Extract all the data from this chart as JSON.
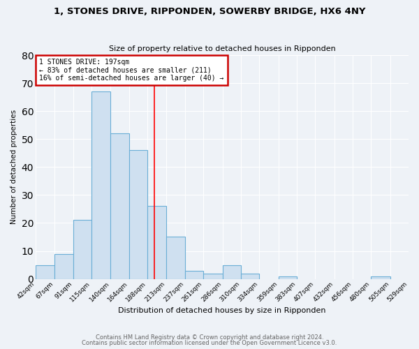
{
  "title": "1, STONES DRIVE, RIPPONDEN, SOWERBY BRIDGE, HX6 4NY",
  "subtitle": "Size of property relative to detached houses in Ripponden",
  "xlabel": "Distribution of detached houses by size in Ripponden",
  "ylabel": "Number of detached properties",
  "bar_color": "#cfe0f0",
  "bar_edge_color": "#6aaed6",
  "background_color": "#eef2f7",
  "grid_color": "#ffffff",
  "red_line_x": 197,
  "bin_edges": [
    42,
    67,
    91,
    115,
    140,
    164,
    188,
    213,
    237,
    261,
    286,
    310,
    334,
    359,
    383,
    407,
    432,
    456,
    480,
    505,
    529
  ],
  "bar_heights": [
    5,
    9,
    21,
    67,
    52,
    46,
    26,
    15,
    3,
    2,
    5,
    2,
    0,
    1,
    0,
    0,
    0,
    0,
    1,
    0
  ],
  "tick_labels": [
    "42sqm",
    "67sqm",
    "91sqm",
    "115sqm",
    "140sqm",
    "164sqm",
    "188sqm",
    "213sqm",
    "237sqm",
    "261sqm",
    "286sqm",
    "310sqm",
    "334sqm",
    "359sqm",
    "383sqm",
    "407sqm",
    "432sqm",
    "456sqm",
    "480sqm",
    "505sqm",
    "529sqm"
  ],
  "annotation_title": "1 STONES DRIVE: 197sqm",
  "annotation_line1": "← 83% of detached houses are smaller (211)",
  "annotation_line2": "16% of semi-detached houses are larger (40) →",
  "annotation_box_color": "#ffffff",
  "annotation_box_edge": "#cc0000",
  "footer1": "Contains HM Land Registry data © Crown copyright and database right 2024.",
  "footer2": "Contains public sector information licensed under the Open Government Licence v3.0.",
  "ylim": [
    0,
    80
  ],
  "figsize": [
    6.0,
    5.0
  ],
  "dpi": 100
}
